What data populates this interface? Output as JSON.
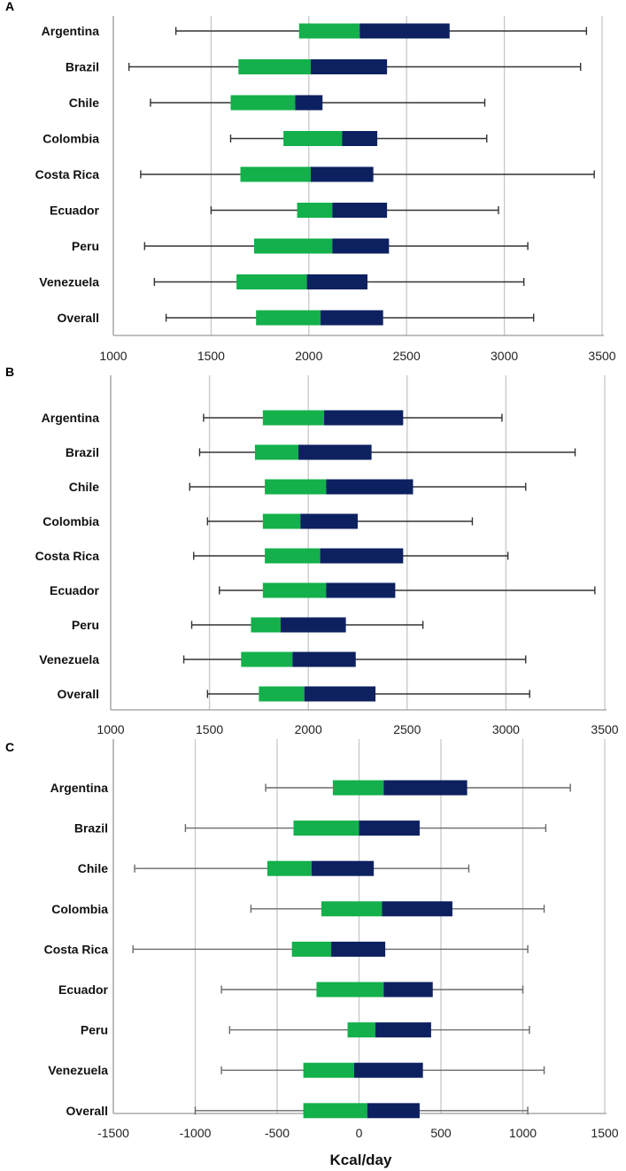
{
  "colors": {
    "q1": "#13b04b",
    "q2": "#0d2160",
    "grid": "#c8c8c8",
    "axis": "#9a9a9a",
    "whisker": "#333333",
    "whisker_c": "#6a6a6a"
  },
  "chart_data": [
    {
      "type": "boxplot",
      "panel": "A",
      "xlim": [
        1000,
        3500
      ],
      "xticks": [
        1000,
        1500,
        2000,
        2500,
        3000,
        3500
      ],
      "xlabel": "",
      "categories": [
        "Argentina",
        "Brazil",
        "Chile",
        "Colombia",
        "Costa Rica",
        "Ecuador",
        "Peru",
        "Venezuela",
        "Overall"
      ],
      "min": [
        1320,
        1080,
        1190,
        1600,
        1140,
        1500,
        1160,
        1210,
        1270
      ],
      "q1": [
        1950,
        1640,
        1600,
        1870,
        1650,
        1940,
        1720,
        1630,
        1730
      ],
      "median": [
        2260,
        2010,
        1930,
        2170,
        2010,
        2120,
        2120,
        1990,
        2060
      ],
      "q3": [
        2720,
        2400,
        2070,
        2350,
        2330,
        2400,
        2410,
        2300,
        2380
      ],
      "max": [
        3420,
        3390,
        2900,
        2910,
        3460,
        2970,
        3120,
        3100,
        3150
      ]
    },
    {
      "type": "boxplot",
      "panel": "B",
      "xlim": [
        1000,
        3500
      ],
      "xticks": [
        1000,
        1500,
        2000,
        2500,
        3000,
        3500
      ],
      "xlabel": "",
      "categories": [
        "Argentina",
        "Brazil",
        "Chile",
        "Colombia",
        "Costa Rica",
        "Ecuador",
        "Peru",
        "Venezuela",
        "Overall"
      ],
      "min": [
        1470,
        1450,
        1400,
        1490,
        1420,
        1550,
        1410,
        1370,
        1490
      ],
      "q1": [
        1770,
        1730,
        1780,
        1770,
        1780,
        1770,
        1710,
        1660,
        1750
      ],
      "median": [
        2080,
        1950,
        2090,
        1960,
        2060,
        2090,
        1860,
        1920,
        1980
      ],
      "q3": [
        2480,
        2320,
        2530,
        2250,
        2480,
        2440,
        2190,
        2240,
        2340
      ],
      "max": [
        2980,
        3350,
        3100,
        2830,
        3010,
        3450,
        2580,
        3100,
        3120
      ]
    },
    {
      "type": "boxplot",
      "panel": "C",
      "xlim": [
        -1500,
        1500
      ],
      "xticks": [
        -1500,
        -1000,
        -500,
        0,
        500,
        1000,
        1500
      ],
      "xlabel": "Kcal/day",
      "categories": [
        "Argentina",
        "Brazil",
        "Chile",
        "Colombia",
        "Costa Rica",
        "Ecuador",
        "Peru",
        "Venezuela",
        "Overall"
      ],
      "min": [
        -570,
        -1060,
        -1370,
        -660,
        -1380,
        -840,
        -790,
        -840,
        -1000
      ],
      "q1": [
        -160,
        -400,
        -560,
        -230,
        -410,
        -260,
        -70,
        -340,
        -340
      ],
      "median": [
        150,
        0,
        -290,
        140,
        -170,
        150,
        100,
        -30,
        50
      ],
      "q3": [
        660,
        370,
        90,
        570,
        160,
        450,
        440,
        390,
        370
      ],
      "max": [
        1290,
        1140,
        670,
        1130,
        1030,
        1000,
        1040,
        1130,
        1030
      ]
    }
  ]
}
